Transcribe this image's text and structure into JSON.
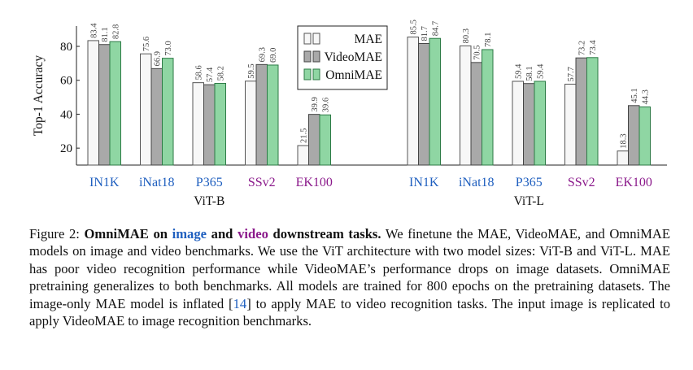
{
  "chart_data": {
    "type": "bar",
    "ylabel": "Top-1 Accuracy",
    "ylim": [
      10,
      92
    ],
    "yticks": [
      20,
      40,
      60,
      80
    ],
    "grid": false,
    "legend_position": "top-center",
    "legend": [
      {
        "name": "MAE",
        "color": "#f7f7f7"
      },
      {
        "name": "VideoMAE",
        "color": "#a9a9a9"
      },
      {
        "name": "OmniMAE",
        "color": "#8fd6a3"
      }
    ],
    "groups": [
      {
        "name": "ViT-B",
        "categories": [
          {
            "label": "IN1K",
            "type": "image",
            "values": [
              83.4,
              81.1,
              82.8
            ]
          },
          {
            "label": "iNat18",
            "type": "image",
            "values": [
              75.6,
              66.9,
              73.0
            ]
          },
          {
            "label": "P365",
            "type": "image",
            "values": [
              58.6,
              57.4,
              58.2
            ]
          },
          {
            "label": "SSv2",
            "type": "video",
            "values": [
              59.5,
              69.3,
              69.0
            ]
          },
          {
            "label": "EK100",
            "type": "video",
            "values": [
              21.5,
              39.9,
              39.6
            ]
          }
        ]
      },
      {
        "name": "ViT-L",
        "categories": [
          {
            "label": "IN1K",
            "type": "image",
            "values": [
              85.5,
              81.7,
              84.7
            ]
          },
          {
            "label": "iNat18",
            "type": "image",
            "values": [
              80.3,
              70.5,
              78.1
            ]
          },
          {
            "label": "P365",
            "type": "image",
            "values": [
              59.4,
              58.1,
              59.4
            ]
          },
          {
            "label": "SSv2",
            "type": "video",
            "values": [
              57.7,
              73.2,
              73.4
            ]
          },
          {
            "label": "EK100",
            "type": "video",
            "values": [
              18.3,
              45.1,
              44.3
            ]
          }
        ]
      }
    ],
    "label_colors": {
      "image": "#1f5fbf",
      "video": "#8b1a8b"
    }
  },
  "caption": {
    "prefix": "Figure 2: ",
    "bold_1": "OmniMAE on ",
    "bold_image": "image",
    "bold_2": " and ",
    "bold_video": "video",
    "bold_3": " downstream tasks.",
    "text_1": " We finetune the MAE, VideoMAE, and OmniMAE models on image and video benchmarks. We use the ViT architecture with two model sizes: ViT-B and ViT-L. MAE has poor video recognition performance while VideoMAE’s performance drops on image datasets. OmniMAE pretraining generalizes to both benchmarks. All models are trained for 800 epochs on the pretraining datasets. The image-only MAE model is inflated [",
    "ref": "14",
    "text_2": "] to apply MAE to video recognition tasks. The input image is replicated to apply VideoMAE to image recognition benchmarks."
  }
}
